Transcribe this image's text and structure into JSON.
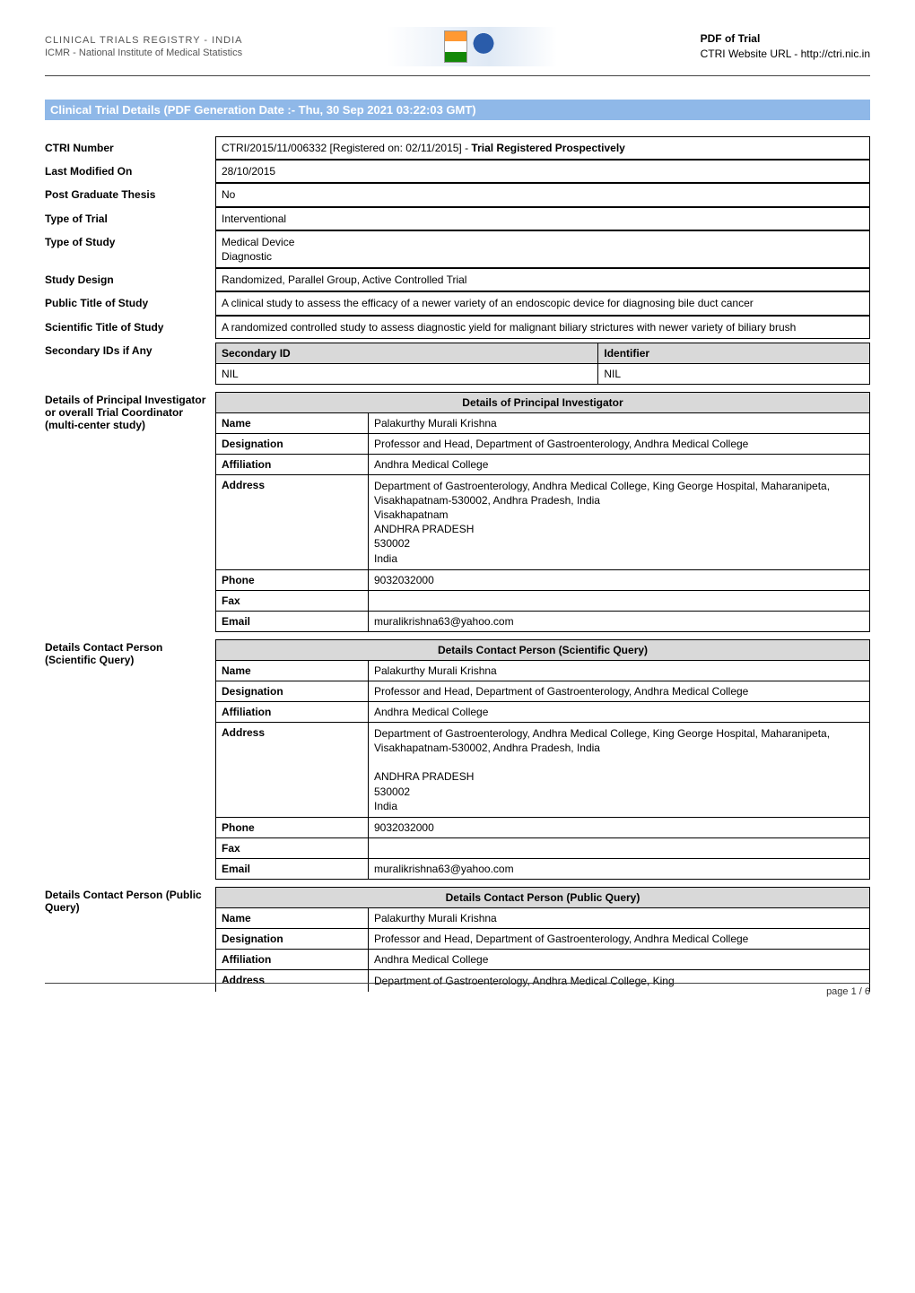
{
  "header": {
    "org_line1": "CLINICAL TRIALS REGISTRY - INDIA",
    "org_line2": "ICMR - National Institute of Medical Statistics",
    "pdf_title": "PDF of Trial",
    "site_url": "CTRI Website URL - http://ctri.nic.in"
  },
  "banner_text": "Clinical Trial Details (PDF Generation Date :- Thu, 30 Sep 2021 03:22:03 GMT)",
  "colors": {
    "banner_bg": "#8fb8e8",
    "banner_fg": "#ffffff",
    "table_header_bg": "#d9d9d9",
    "border": "#000000",
    "rule": "#444444",
    "page_bg": "#ffffff"
  },
  "rows": {
    "ctri_number": {
      "label": "CTRI Number",
      "value_prefix": "CTRI/2015/11/006332 [Registered on: 02/11/2015] - ",
      "value_bold": "Trial Registered Prospectively"
    },
    "last_modified": {
      "label": "Last Modified On",
      "value": "28/10/2015"
    },
    "post_grad": {
      "label": "Post Graduate Thesis",
      "value": "No"
    },
    "type_trial": {
      "label": "Type of Trial",
      "value": "Interventional"
    },
    "type_study": {
      "label": "Type of Study",
      "value": "Medical Device\nDiagnostic"
    },
    "study_design": {
      "label": "Study Design",
      "value": "Randomized, Parallel Group, Active Controlled Trial"
    },
    "public_title": {
      "label": "Public Title of Study",
      "value": "A clinical study to assess the efficacy of a newer variety of an endoscopic device for diagnosing bile duct cancer"
    },
    "sci_title": {
      "label": "Scientific Title of Study",
      "value": "A randomized controlled study to assess diagnostic yield for malignant biliary strictures with newer variety of biliary brush"
    },
    "secondary_ids": {
      "label": "Secondary IDs if Any",
      "col1": "Secondary ID",
      "col2": "Identifier",
      "row_id": "NIL",
      "row_ident": "NIL"
    }
  },
  "principal": {
    "label": "Details of Principal Investigator or overall Trial Coordinator (multi-center study)",
    "header": "Details of Principal Investigator",
    "name_k": "Name",
    "name_v": "Palakurthy Murali Krishna",
    "desig_k": "Designation",
    "desig_v": "Professor and Head, Department of Gastroenterology, Andhra Medical College",
    "affil_k": "Affiliation",
    "affil_v": "Andhra Medical College",
    "addr_k": "Address",
    "addr_v": "Department of Gastroenterology, Andhra Medical College, King George Hospital, Maharanipeta, Visakhapatnam-530002, Andhra Pradesh, India\nVisakhapatnam\nANDHRA PRADESH\n530002\nIndia",
    "phone_k": "Phone",
    "phone_v": "9032032000",
    "fax_k": "Fax",
    "fax_v": "",
    "email_k": "Email",
    "email_v": "muralikrishna63@yahoo.com"
  },
  "scientific_contact": {
    "label": "Details Contact Person (Scientific Query)",
    "header": "Details Contact Person (Scientific Query)",
    "name_k": "Name",
    "name_v": "Palakurthy Murali Krishna",
    "desig_k": "Designation",
    "desig_v": "Professor and Head, Department of Gastroenterology, Andhra Medical College",
    "affil_k": "Affiliation",
    "affil_v": "Andhra Medical College",
    "addr_k": "Address",
    "addr_v": "Department of Gastroenterology, Andhra Medical College, King George Hospital, Maharanipeta, Visakhapatnam-530002, Andhra Pradesh, India\n\nANDHRA PRADESH\n530002\nIndia",
    "phone_k": "Phone",
    "phone_v": "9032032000",
    "fax_k": "Fax",
    "fax_v": "",
    "email_k": "Email",
    "email_v": "muralikrishna63@yahoo.com"
  },
  "public_contact": {
    "label": "Details Contact Person (Public Query)",
    "header": "Details Contact Person (Public Query)",
    "name_k": "Name",
    "name_v": "Palakurthy Murali Krishna",
    "desig_k": "Designation",
    "desig_v": "Professor and Head, Department of Gastroenterology, Andhra Medical College",
    "affil_k": "Affiliation",
    "affil_v": "Andhra Medical College",
    "addr_k": "Address",
    "addr_v": "Department of Gastroenterology, Andhra Medical College, King"
  },
  "footer": {
    "page": "page 1 / 6"
  }
}
